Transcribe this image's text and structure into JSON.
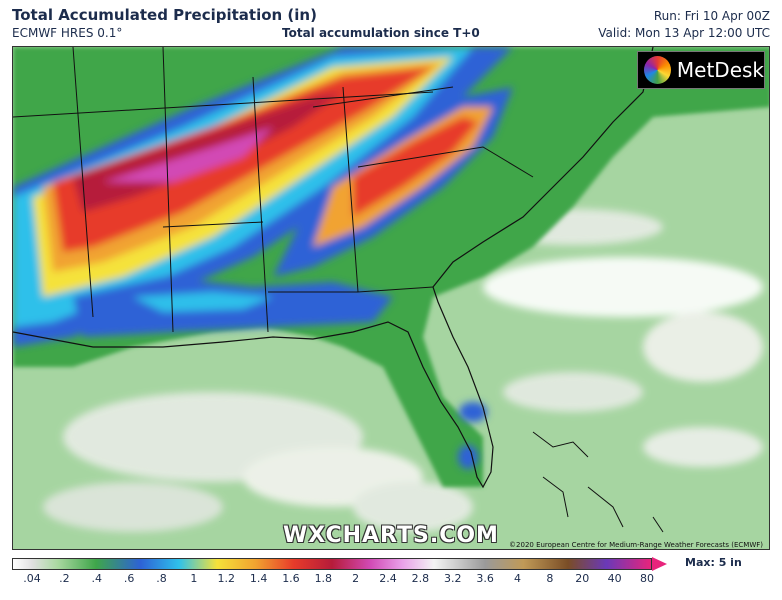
{
  "header": {
    "title": "Total Accumulated Precipitation (in)",
    "model": "ECMWF HRES 0.1°",
    "subtitle": "Total accumulation since T+0",
    "run": "Run: Fri 10 Apr 00Z",
    "valid": "Valid: Mon 13 Apr 12:00 UTC"
  },
  "map": {
    "region": "Southeastern United States and Gulf of Mexico",
    "logo_text": "MetDesk",
    "watermark": "WXCHARTS.COM",
    "copyright": "©2020 European Centre for Medium-Range Weather Forecasts (ECMWF)",
    "ocean_color": "#9cd09a",
    "heavy_band_colors": [
      "#e73b2a",
      "#f1a330",
      "#f5e23a",
      "#2fc0ea",
      "#2d62d6",
      "#b61c3a",
      "#d24ab5"
    ]
  },
  "scale": {
    "ticks": [
      ".04",
      ".2",
      ".4",
      ".6",
      ".8",
      "1",
      "1.2",
      "1.4",
      "1.6",
      "1.8",
      "2",
      "2.4",
      "2.8",
      "3.2",
      "3.6",
      "4",
      "8",
      "20",
      "40",
      "80"
    ],
    "max_label": "Max: 5 in"
  }
}
